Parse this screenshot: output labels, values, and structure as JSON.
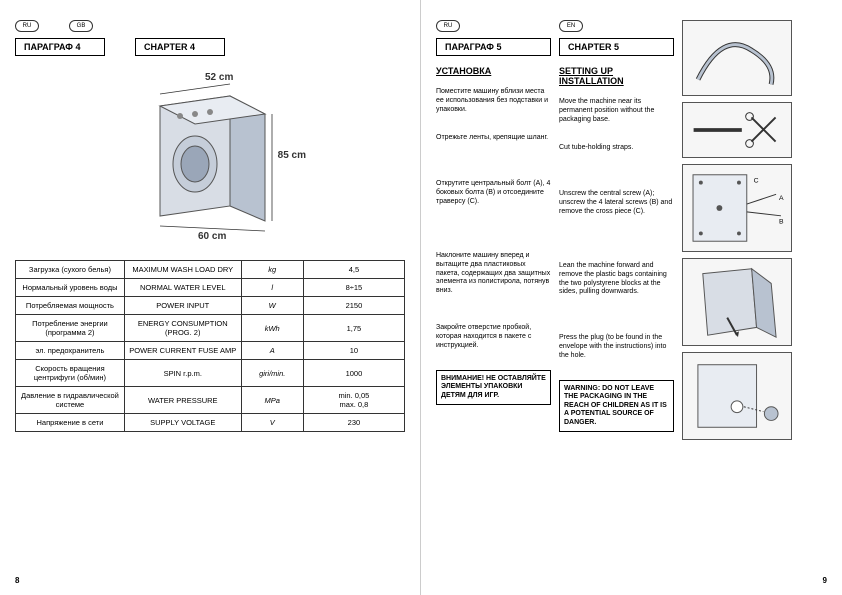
{
  "left": {
    "lang_ru": "RU",
    "lang_en": "GB",
    "chapter_ru": "ПАРАГРАФ 4",
    "chapter_en": "CHAPTER 4",
    "dims": {
      "depth": "52 cm",
      "height": "85 cm",
      "width": "60 cm"
    },
    "specs": [
      {
        "ru": "Загрузка (сухого белья)",
        "en": "MAXIMUM WASH LOAD DRY",
        "unit": "kg",
        "val": "4,5"
      },
      {
        "ru": "Нормальный уровень воды",
        "en": "NORMAL WATER LEVEL",
        "unit": "l",
        "val": "8÷15"
      },
      {
        "ru": "Потребляемая мощность",
        "en": "POWER INPUT",
        "unit": "W",
        "val": "2150"
      },
      {
        "ru": "Потребление энергии (программа 2)",
        "en": "ENERGY CONSUMPTION (PROG. 2)",
        "unit": "kWh",
        "val": "1,75"
      },
      {
        "ru": "эл. предохранитель",
        "en": "POWER CURRENT FUSE AMP",
        "unit": "A",
        "val": "10"
      },
      {
        "ru": "Скорость вращения центрифуги (об/мин)",
        "en": "SPIN r.p.m.",
        "unit": "giri/min.",
        "val": "1000"
      },
      {
        "ru": "Давление в гидравлической системе",
        "en": "WATER PRESSURE",
        "unit": "MPa",
        "val": "min. 0,05\nmax. 0,8"
      },
      {
        "ru": "Напряжение в сети",
        "en": "SUPPLY VOLTAGE",
        "unit": "V",
        "val": "230"
      }
    ],
    "pagenum": "8"
  },
  "right": {
    "lang_ru": "RU",
    "lang_en": "EN",
    "chapter_ru": "ПАРАГРАФ 5",
    "chapter_en": "CHAPTER 5",
    "heading_ru": "УСТАНОВКА",
    "heading_en": "SETTING UP INSTALLATION",
    "rows": [
      {
        "ru": "Поместите машину вблизи места ее использования без подставки и упаковки.",
        "en": "Move the machine near its permanent position without the packaging base."
      },
      {
        "ru": "Отрежьте ленты, крепящие шланг.",
        "en": "Cut tube-holding straps."
      },
      {
        "ru": "Открутите центральный болт (A), 4 боковых болта (B) и отсоедините траверсу (C).",
        "en": "Unscrew the central screw (A); unscrew the 4 lateral screws (B) and remove the cross piece (C)."
      },
      {
        "ru": "Наклоните машину вперед и вытащите два пластиковых пакета, содержащих два защитных элемента из полистирола, потянув вниз.",
        "en": "Lean the machine forward and remove the plastic bags containing the two polystyrene blocks at the sides, pulling downwards."
      },
      {
        "ru": "Закройте отверстие пробкой, которая находится в пакете с инструкцией.",
        "en": "Press the plug (to be found in the envelope with the instructions) into the hole."
      }
    ],
    "warn_ru": "ВНИМАНИЕ! НЕ ОСТАВЛЯЙТЕ ЭЛЕМЕНТЫ УПАКОВКИ ДЕТЯМ ДЛЯ ИГР.",
    "warn_en": "WARNING: DO NOT LEAVE THE PACKAGING IN THE REACH OF CHILDREN AS IT IS A POTENTIAL SOURCE OF DANGER.",
    "pagenum": "9"
  }
}
